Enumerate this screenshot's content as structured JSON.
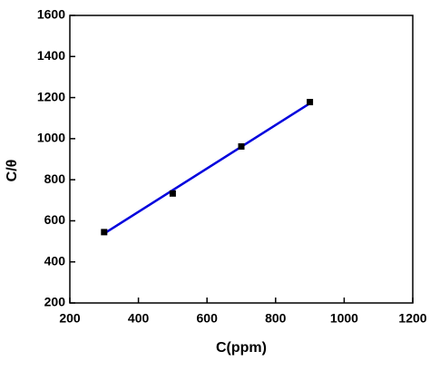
{
  "chart_data": {
    "type": "scatter",
    "xlabel": "C(ppm)",
    "ylabel": "C/θ",
    "xlim": [
      200,
      1200
    ],
    "xticks": [
      200,
      400,
      600,
      800,
      1000,
      1200
    ],
    "ylim": [
      200,
      1600
    ],
    "yticks": [
      200,
      400,
      600,
      800,
      1000,
      1200,
      1400,
      1600
    ],
    "series": [
      {
        "type": "scatter",
        "color": "#000000",
        "x": [
          300,
          500,
          700,
          900
        ],
        "values": [
          545,
          733,
          962,
          1178
        ]
      },
      {
        "type": "line",
        "color": "#0000dd",
        "x": [
          300,
          900
        ],
        "values": [
          538,
          1172
        ]
      }
    ]
  }
}
